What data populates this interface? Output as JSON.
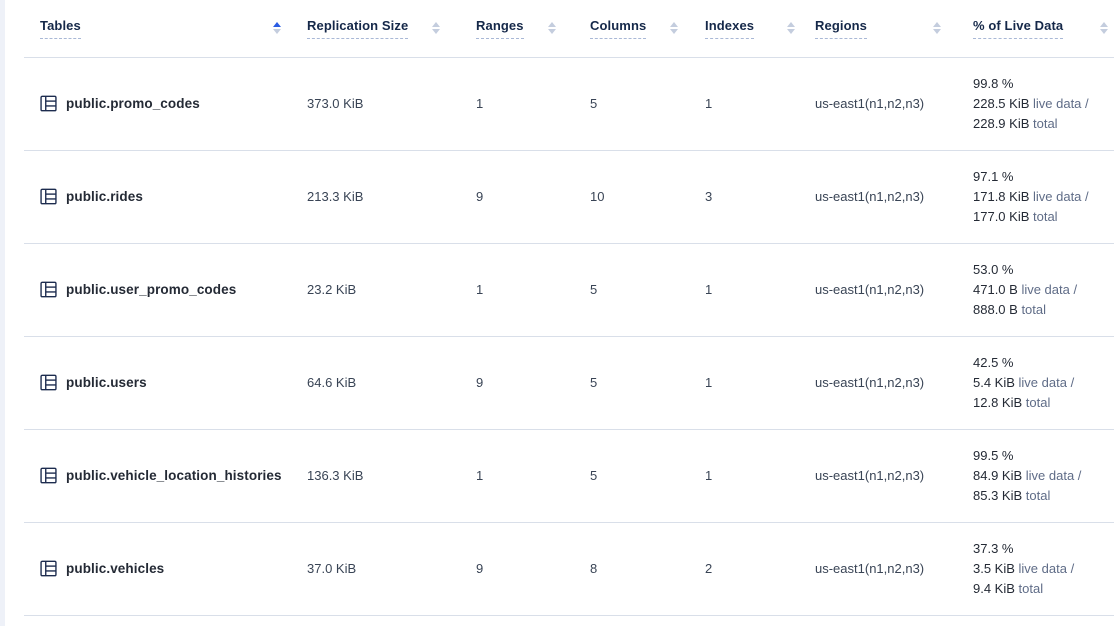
{
  "colors": {
    "active_sort_arrow": "#2a5ce4",
    "inactive_sort_arrow": "#c4cdde",
    "header_text": "#152849",
    "row_separator": "#d9dfe9",
    "table_icon": "#1d2c4f"
  },
  "table": {
    "columns": [
      {
        "label": "Tables",
        "sort": "asc"
      },
      {
        "label": "Replication Size",
        "sort": "none"
      },
      {
        "label": "Ranges",
        "sort": "none"
      },
      {
        "label": "Columns",
        "sort": "none"
      },
      {
        "label": "Indexes",
        "sort": "none"
      },
      {
        "label": "Regions",
        "sort": "none"
      },
      {
        "label": "% of Live Data",
        "sort": "none"
      }
    ],
    "rows": [
      {
        "name": "public.promo_codes",
        "replication_size": "373.0 KiB",
        "ranges": "1",
        "columns": "5",
        "indexes": "1",
        "regions": "us-east1(n1,n2,n3)",
        "live_pct": "99.8 %",
        "live_value": "228.5 KiB",
        "live_suffix": " live data /",
        "total_value": "228.9 KiB",
        "total_suffix": " total"
      },
      {
        "name": "public.rides",
        "replication_size": "213.3 KiB",
        "ranges": "9",
        "columns": "10",
        "indexes": "3",
        "regions": "us-east1(n1,n2,n3)",
        "live_pct": "97.1 %",
        "live_value": "171.8 KiB",
        "live_suffix": " live data /",
        "total_value": "177.0 KiB",
        "total_suffix": " total"
      },
      {
        "name": "public.user_promo_codes",
        "replication_size": "23.2 KiB",
        "ranges": "1",
        "columns": "5",
        "indexes": "1",
        "regions": "us-east1(n1,n2,n3)",
        "live_pct": "53.0 %",
        "live_value": "471.0 B",
        "live_suffix": " live data /",
        "total_value": "888.0 B",
        "total_suffix": " total"
      },
      {
        "name": "public.users",
        "replication_size": "64.6 KiB",
        "ranges": "9",
        "columns": "5",
        "indexes": "1",
        "regions": "us-east1(n1,n2,n3)",
        "live_pct": "42.5 %",
        "live_value": "5.4 KiB",
        "live_suffix": " live data /",
        "total_value": "12.8 KiB",
        "total_suffix": " total"
      },
      {
        "name": "public.vehicle_location_histories",
        "replication_size": "136.3 KiB",
        "ranges": "1",
        "columns": "5",
        "indexes": "1",
        "regions": "us-east1(n1,n2,n3)",
        "live_pct": "99.5 %",
        "live_value": "84.9 KiB",
        "live_suffix": " live data /",
        "total_value": "85.3 KiB",
        "total_suffix": " total"
      },
      {
        "name": "public.vehicles",
        "replication_size": "37.0 KiB",
        "ranges": "9",
        "columns": "8",
        "indexes": "2",
        "regions": "us-east1(n1,n2,n3)",
        "live_pct": "37.3 %",
        "live_value": "3.5 KiB",
        "live_suffix": " live data /",
        "total_value": "9.4 KiB",
        "total_suffix": " total"
      }
    ]
  }
}
